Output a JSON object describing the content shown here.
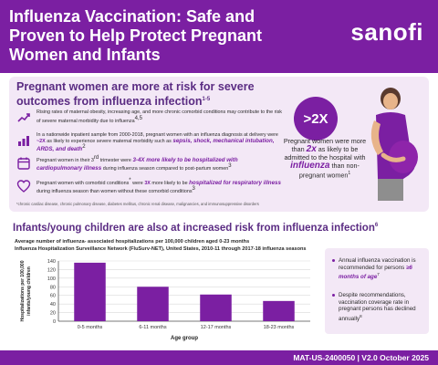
{
  "header": {
    "title": "Influenza Vaccination: Safe and Proven to Help Protect Pregnant Women and Infants",
    "logo": "sanofi"
  },
  "pregnant": {
    "title": "Pregnant women are more at risk for severe outcomes from influenza infection",
    "title_sup": "1-5",
    "bullets": [
      {
        "icon": "trend-up-icon",
        "text": "Rising rates of maternal obesity, increasing age, and more chronic comorbid conditions may contribute to the risk of severe maternal morbidity due to influenza",
        "sup": "4,5"
      },
      {
        "icon": "bar-chart-icon",
        "text_a": "In a nationwide inpatient sample from 2000-2018, pregnant women with an influenza diagnosis at delivery were",
        "em": "~2X",
        "text_b": "as likely to experience severe maternal morbidity such as",
        "hl": "sepsis, shock, mechanical intubation, ARDS, and death",
        "sup": "2"
      },
      {
        "icon": "calendar-icon",
        "text_a": "Pregnant women in their 3",
        "ord": "rd",
        "text_b": "trimester were",
        "hl": "3-4X more likely to be hospitalized with cardiopulmonary illness",
        "text_c": "during influenza season compared to post-partum women",
        "sup": "3"
      },
      {
        "icon": "heart-icon",
        "text_a": "Pregnant women with comorbid conditions",
        "ast": "*",
        "text_b": "were",
        "em": "3X",
        "text_c": "more likely to be",
        "hl": "hospitalized for respiratory illness",
        "text_d": "during influenza season than women without these comorbid conditions",
        "sup": "3"
      }
    ],
    "footnote": "*chronic cardiac disease, chronic pulmonary disease, diabetes mellitus, chronic renal disease, malignancies, and immunosuppressive disorders"
  },
  "stat": {
    "badge": ">2X",
    "text_a": "Pregnant women were more than",
    "big_a": "2x",
    "text_b": "as likely to be admitted to the hospital with",
    "big_b": "influenza",
    "text_c": "than non-pregnant women",
    "sup": "1"
  },
  "infants": {
    "title": "Infants/young children are also at increased risk from influenza infection",
    "title_sup": "6",
    "sub1": "Average number of influenza- associated hospitalizations per 100,000 children aged 0-23 months",
    "sub2": "Influenza Hospitalization Surveillance Network (FluSurv-NET), United States, 2010-11 through 2017-18 influenza seasons"
  },
  "chart_data": {
    "type": "bar",
    "categories": [
      "0-5 months",
      "6-11 months",
      "12-17 months",
      "18-23 months"
    ],
    "values": [
      136,
      80,
      62,
      47
    ],
    "ylim": [
      0,
      140
    ],
    "yticks": [
      0,
      20,
      40,
      60,
      80,
      100,
      120,
      140
    ],
    "xlabel": "Age group",
    "ylabel": "Hospitalizations per 100,000 infants/young children",
    "grid": true,
    "bar_color": "#7b1fa2"
  },
  "notes": [
    {
      "text_a": "Annual influenza vaccination is recommended for persons",
      "hl": "≥6 months of age",
      "sup": "7"
    },
    {
      "text_a": "Despite recommendations, vaccination coverage rate in pregnant persons has declined annually",
      "sup": "8"
    }
  ],
  "footer": {
    "code": "MAT-US-2400050 | V2.0 October 2025"
  },
  "colors": {
    "brand": "#7b1fa2",
    "panel": "#f3e8f6",
    "heading": "#5b2c83"
  }
}
